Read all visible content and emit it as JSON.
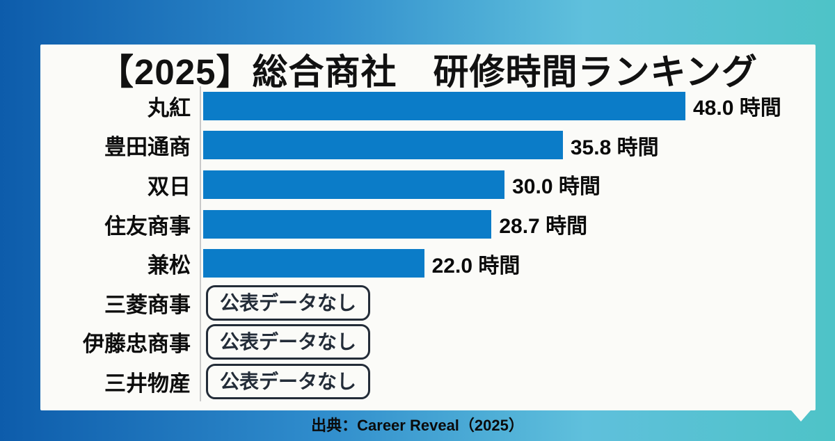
{
  "title": "【2025】総合商社　研修時間ランキング",
  "footer": {
    "source": "出典：Career Reveal（2025）"
  },
  "colors": {
    "bar": "#0b7cc8",
    "badge": "#232c38",
    "card_background": "#fbfbf8",
    "frame_gradient_left": "#0d5cab",
    "frame_gradient_right": "#4ec3c7"
  },
  "chart_data": {
    "type": "bar",
    "orientation": "horizontal",
    "title": "【2025】総合商社　研修時間ランキング",
    "categories": [
      "丸紅",
      "豊田通商",
      "双日",
      "住友商事",
      "兼松",
      "三菱商事",
      "伊藤忠商事",
      "三井物産"
    ],
    "values": [
      48.0,
      35.8,
      30.0,
      28.7,
      22.0,
      null,
      null,
      null
    ],
    "value_labels": [
      "48.0 時間",
      "35.8 時間",
      "30.0 時間",
      "28.7 時間",
      "22.0 時間",
      "公表データなし",
      "公表データなし",
      "公表データなし"
    ],
    "no_data_label": "公表データなし",
    "unit": "時間",
    "xlim": [
      0,
      48
    ],
    "xlabel": "",
    "ylabel": "",
    "grid": false,
    "legend": false,
    "source": "出典：Career Reveal（2025）"
  }
}
